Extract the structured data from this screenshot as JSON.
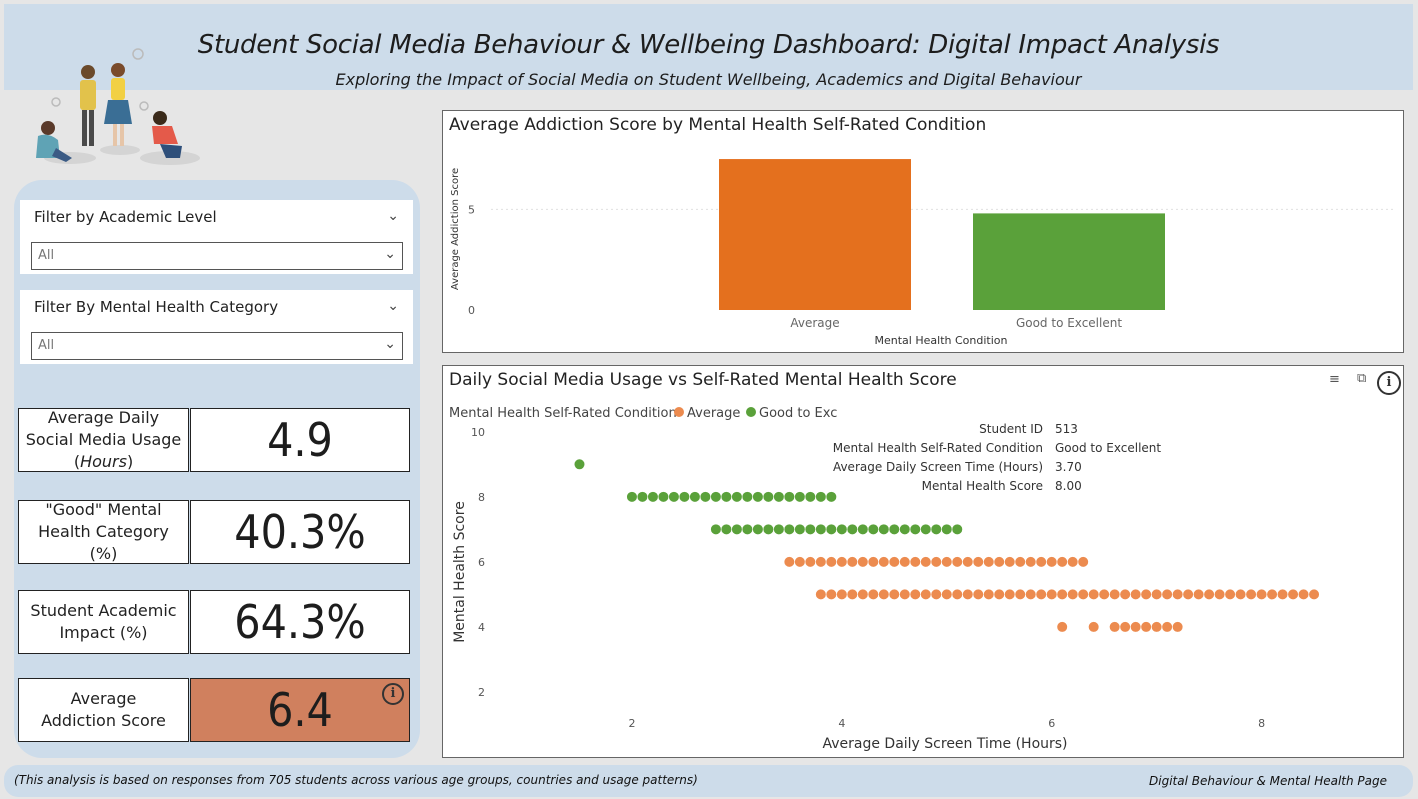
{
  "header": {
    "title": "Student Social Media Behaviour & Wellbeing Dashboard: Digital Impact Analysis",
    "subtitle": "Exploring the Impact of Social Media on Student Wellbeing, Academics and Digital Behaviour"
  },
  "filters": {
    "academic": {
      "label": "Filter by Academic Level",
      "value": "All"
    },
    "mental": {
      "label": "Filter By Mental Health Category",
      "value": "All"
    }
  },
  "kpis": {
    "usage": {
      "label_pre": "Average Daily Social Media Usage (",
      "label_em": "Hours",
      "label_post": ")",
      "value": "4.9"
    },
    "good": {
      "label": "\"Good\" Mental Health Category (%)",
      "value": "40.3%"
    },
    "academic": {
      "label": "Student Academic Impact (%)",
      "value": "64.3%"
    },
    "addiction": {
      "label": "Average Addiction Score",
      "value": "6.4"
    }
  },
  "colors": {
    "average": "#e4701e",
    "good": "#5aa13a",
    "scatter_average": "#ec8b4f",
    "scatter_good": "#5aa13a",
    "kpi_accent": "#d0805e"
  },
  "bar_chart": {
    "title": "Average Addiction Score by Mental Health Self-Rated Condition",
    "chart_data": {
      "type": "bar",
      "categories": [
        "Average",
        "Good to Excellent"
      ],
      "values": [
        7.5,
        4.8
      ],
      "xlabel": "Mental Health Condition",
      "ylabel": "Average Addiction Score",
      "yticks": [
        0,
        5
      ],
      "ylim": [
        0,
        8
      ]
    }
  },
  "scatter": {
    "title": "Daily Social Media Usage vs Self-Rated Mental Health Score",
    "legend_title": "Mental Health Self-Rated Condition",
    "legend": [
      {
        "name": "Average",
        "key": "average"
      },
      {
        "name": "Good to Exc",
        "key": "good"
      }
    ],
    "tooltip": [
      {
        "k": "Student ID",
        "v": "513"
      },
      {
        "k": "Mental Health Self-Rated Condition",
        "v": "Good to Excellent"
      },
      {
        "k": "Average Daily Screen Time (Hours)",
        "v": "3.70"
      },
      {
        "k": "Mental Health Score",
        "v": "8.00"
      }
    ],
    "chart_data": {
      "type": "scatter",
      "xlabel": "Average Daily Screen Time (Hours)",
      "ylabel": "Mental Health Score",
      "xticks": [
        2,
        4,
        6,
        8
      ],
      "yticks": [
        2,
        4,
        6,
        8,
        10
      ],
      "xlim": [
        1.2,
        9.3
      ],
      "ylim": [
        1.2,
        10.3
      ],
      "series": [
        {
          "name": "Good to Excellent",
          "key": "good",
          "rows": [
            {
              "y": 9,
              "x_from": 1.5,
              "x_to": 1.5
            },
            {
              "y": 8,
              "x_from": 2.0,
              "x_to": 3.9
            },
            {
              "y": 7,
              "x_from": 2.8,
              "x_to": 5.1
            }
          ]
        },
        {
          "name": "Average",
          "key": "average",
          "rows": [
            {
              "y": 6,
              "x_from": 3.5,
              "x_to": 6.3
            },
            {
              "y": 5,
              "x_from": 3.8,
              "x_to": 8.5
            },
            {
              "y": 4,
              "x_from": 6.1,
              "x_to": 6.1
            },
            {
              "y": 4,
              "x_from": 6.4,
              "x_to": 6.4
            },
            {
              "y": 4,
              "x_from": 6.6,
              "x_to": 7.2
            }
          ]
        }
      ]
    }
  },
  "footer": {
    "left": "(This analysis is based on responses from 705 students across various age groups, countries and usage patterns)",
    "right": "Digital Behaviour & Mental Health Page"
  }
}
